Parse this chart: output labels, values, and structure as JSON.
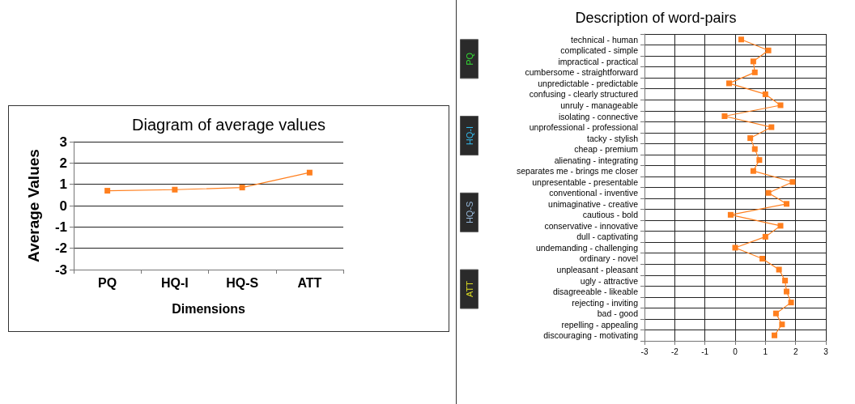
{
  "chart_data": [
    {
      "type": "line",
      "title": "Diagram of average values",
      "xlabel": "Dimensions",
      "ylabel": "Average Values",
      "categories": [
        "PQ",
        "HQ-I",
        "HQ-S",
        "ATT"
      ],
      "series": [
        {
          "color": "#ff7f1e",
          "values": [
            0.7,
            0.75,
            0.85,
            1.55
          ]
        }
      ],
      "ylim": [
        -3,
        3
      ],
      "yticks": [
        -3,
        -2,
        -1,
        0,
        1,
        2,
        3
      ],
      "grid": "y",
      "marker": "square",
      "line_style": "solid"
    },
    {
      "type": "line",
      "orientation": "horizontal",
      "title": "Description of word-pairs",
      "categories": [
        "technical - human",
        "complicated - simple",
        "impractical - practical",
        "cumbersome - straightforward",
        "unpredictable - predictable",
        "confusing - clearly structured",
        "unruly - manageable",
        "isolating - connective",
        "unprofessional - professional",
        "tacky - stylish",
        "cheap - premium",
        "alienating - integrating",
        "separates me - brings me closer",
        "unpresentable - presentable",
        "conventional - inventive",
        "unimaginative - creative",
        "cautious - bold",
        "conservative - innovative",
        "dull - captivating",
        "undemanding - challenging",
        "ordinary - novel",
        "unpleasant - pleasant",
        "ugly - attractive",
        "disagreeable - likeable",
        "rejecting - inviting",
        "bad - good",
        "repelling - appealing",
        "discouraging - motivating"
      ],
      "series": [
        {
          "color": "#ff7f1e",
          "values": [
            0.2,
            1.1,
            0.6,
            0.65,
            -0.2,
            1.0,
            1.5,
            -0.35,
            1.2,
            0.5,
            0.65,
            0.8,
            0.6,
            1.9,
            1.1,
            1.7,
            -0.15,
            1.5,
            1.0,
            0,
            0.9,
            1.45,
            1.65,
            1.7,
            1.85,
            1.35,
            1.55,
            1.3
          ]
        }
      ],
      "xlim": [
        -3,
        3
      ],
      "xticks": [
        -3,
        -2,
        -1,
        0,
        1,
        2,
        3
      ],
      "grid": true,
      "marker": "square",
      "line_style": "solid",
      "annotations": [
        "PQ",
        "HQ-I",
        "HQ-S",
        "ATT"
      ]
    }
  ]
}
